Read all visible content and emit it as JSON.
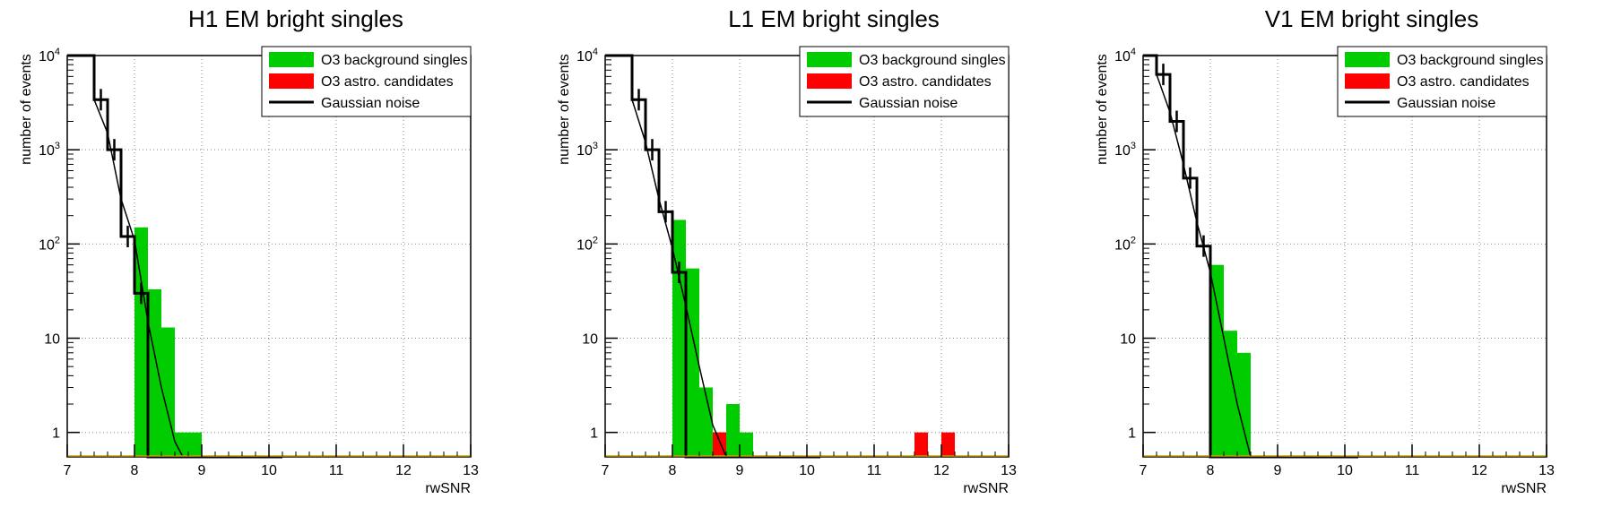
{
  "chart_data": [
    {
      "type": "bar",
      "title": "H1 EM bright singles",
      "xlabel": "rwSNR",
      "ylabel": "number of events",
      "xlim": [
        7,
        13
      ],
      "ylim": [
        0.55,
        10000
      ],
      "y_scale": "log",
      "grid": true,
      "legend_position": "top-right",
      "x_ticks": [
        "7",
        "8",
        "9",
        "10",
        "11",
        "12",
        "13"
      ],
      "y_ticks": [
        {
          "value": 1,
          "label": "1"
        },
        {
          "value": 10,
          "label": "10"
        },
        {
          "value": 100,
          "base": "10",
          "exp": "2"
        },
        {
          "value": 1000,
          "base": "10",
          "exp": "3"
        },
        {
          "value": 10000,
          "base": "10",
          "exp": "4"
        }
      ],
      "series": [
        {
          "name": "O3 background singles",
          "color": "#00cc00",
          "bin_width": 0.2,
          "bins": [
            [
              8.0,
              150
            ],
            [
              8.2,
              33
            ],
            [
              8.4,
              13
            ],
            [
              8.6,
              1
            ],
            [
              8.8,
              1
            ]
          ]
        },
        {
          "name": "O3 astro. candidates",
          "color": "#ff0000",
          "bin_width": 0.2,
          "bins": []
        },
        {
          "name": "Gaussian noise",
          "color": "#000000",
          "step_edges": [
            7.0,
            7.4,
            7.6,
            7.8,
            8.0,
            8.2,
            8.4,
            10.2
          ],
          "step_values": [
            10000,
            3400,
            1000,
            120,
            30,
            0.55,
            0.55
          ],
          "curve": [
            [
              7.4,
              3400
            ],
            [
              7.6,
              1500
            ],
            [
              7.8,
              300
            ],
            [
              8.0,
              110
            ],
            [
              8.2,
              15
            ],
            [
              8.4,
              3
            ],
            [
              8.6,
              0.8
            ],
            [
              8.72,
              0.55
            ]
          ],
          "error_points": [
            [
              7.5,
              3400
            ],
            [
              7.7,
              1000
            ],
            [
              7.9,
              120
            ],
            [
              8.1,
              30
            ]
          ]
        }
      ]
    },
    {
      "type": "bar",
      "title": "L1 EM bright singles",
      "xlabel": "rwSNR",
      "ylabel": "number of events",
      "xlim": [
        7,
        13
      ],
      "ylim": [
        0.55,
        10000
      ],
      "y_scale": "log",
      "grid": true,
      "legend_position": "top-right",
      "x_ticks": [
        "7",
        "8",
        "9",
        "10",
        "11",
        "12",
        "13"
      ],
      "y_ticks": [
        {
          "value": 1,
          "label": "1"
        },
        {
          "value": 10,
          "label": "10"
        },
        {
          "value": 100,
          "base": "10",
          "exp": "2"
        },
        {
          "value": 1000,
          "base": "10",
          "exp": "3"
        },
        {
          "value": 10000,
          "base": "10",
          "exp": "4"
        }
      ],
      "series": [
        {
          "name": "O3 background singles",
          "color": "#00cc00",
          "bin_width": 0.2,
          "bins": [
            [
              8.0,
              180
            ],
            [
              8.2,
              55
            ],
            [
              8.4,
              3
            ],
            [
              8.6,
              1
            ],
            [
              8.8,
              2
            ],
            [
              9.0,
              1
            ]
          ]
        },
        {
          "name": "O3 astro. candidates",
          "color": "#ff0000",
          "bin_width": 0.2,
          "bins": [
            [
              8.6,
              1
            ],
            [
              11.6,
              1
            ],
            [
              12.0,
              1
            ]
          ]
        },
        {
          "name": "Gaussian noise",
          "color": "#000000",
          "step_edges": [
            7.0,
            7.4,
            7.6,
            7.8,
            8.0,
            8.2,
            8.4,
            10.2
          ],
          "step_values": [
            10000,
            3400,
            1000,
            220,
            50,
            0.55,
            0.55
          ],
          "curve": [
            [
              7.4,
              3400
            ],
            [
              7.6,
              1200
            ],
            [
              7.8,
              300
            ],
            [
              8.0,
              90
            ],
            [
              8.2,
              22
            ],
            [
              8.4,
              5
            ],
            [
              8.6,
              1.2
            ],
            [
              8.8,
              0.55
            ]
          ],
          "error_points": [
            [
              7.5,
              3400
            ],
            [
              7.7,
              1000
            ],
            [
              7.9,
              220
            ],
            [
              8.1,
              50
            ]
          ]
        }
      ]
    },
    {
      "type": "bar",
      "title": "V1 EM bright singles",
      "xlabel": "rwSNR",
      "ylabel": "number of events",
      "xlim": [
        7,
        13
      ],
      "ylim": [
        0.55,
        10000
      ],
      "y_scale": "log",
      "grid": true,
      "legend_position": "top-right",
      "x_ticks": [
        "7",
        "8",
        "9",
        "10",
        "11",
        "12",
        "13"
      ],
      "y_ticks": [
        {
          "value": 1,
          "label": "1"
        },
        {
          "value": 10,
          "label": "10"
        },
        {
          "value": 100,
          "base": "10",
          "exp": "2"
        },
        {
          "value": 1000,
          "base": "10",
          "exp": "3"
        },
        {
          "value": 10000,
          "base": "10",
          "exp": "4"
        }
      ],
      "series": [
        {
          "name": "O3 background singles",
          "color": "#00cc00",
          "bin_width": 0.2,
          "bins": [
            [
              8.0,
              60
            ],
            [
              8.2,
              12
            ],
            [
              8.4,
              7
            ]
          ]
        },
        {
          "name": "O3 astro. candidates",
          "color": "#ff0000",
          "bin_width": 0.2,
          "bins": []
        },
        {
          "name": "Gaussian noise",
          "color": "#000000",
          "step_edges": [
            7.0,
            7.2,
            7.4,
            7.6,
            7.8,
            8.0,
            10.2
          ],
          "step_values": [
            10000,
            6300,
            2000,
            500,
            95,
            0.55
          ],
          "curve": [
            [
              7.2,
              6300
            ],
            [
              7.4,
              2500
            ],
            [
              7.6,
              700
            ],
            [
              7.8,
              170
            ],
            [
              8.0,
              50
            ],
            [
              8.2,
              10
            ],
            [
              8.4,
              2
            ],
            [
              8.6,
              0.55
            ]
          ],
          "error_points": [
            [
              7.3,
              6300
            ],
            [
              7.5,
              2000
            ],
            [
              7.7,
              500
            ],
            [
              7.9,
              95
            ]
          ]
        }
      ]
    }
  ]
}
